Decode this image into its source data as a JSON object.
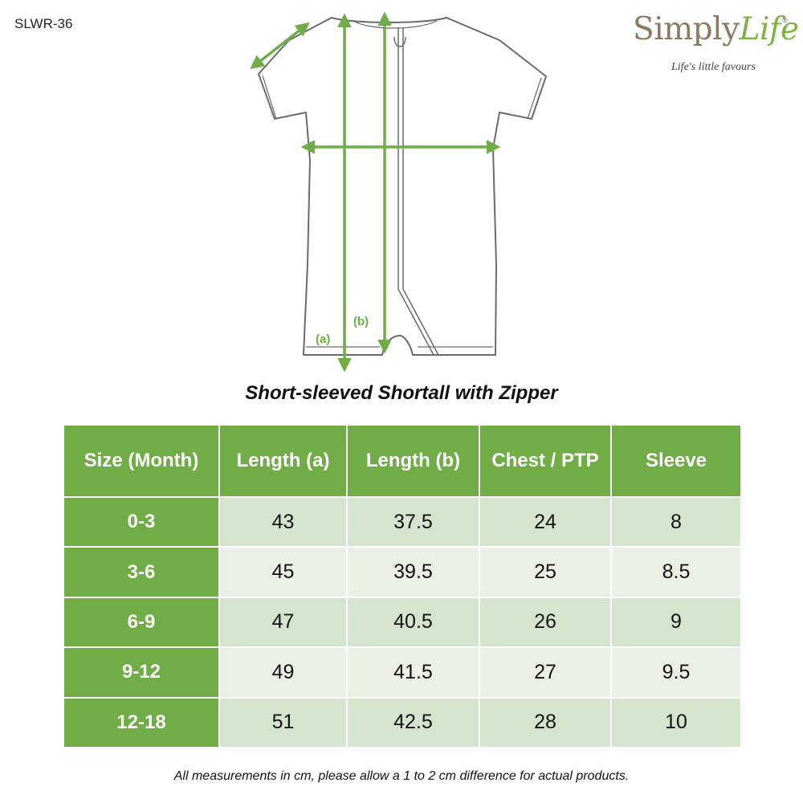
{
  "product_code": "SLWR-36",
  "brand": {
    "name_part1": "Simply",
    "name_part2": "Life",
    "registered_mark": "®",
    "tagline": "Life's little favours",
    "colors": {
      "text": "#8a7a62",
      "accent": "#7cb342"
    }
  },
  "diagram": {
    "label_a": "(a)",
    "label_b": "(b)",
    "arrow_color": "#70ad47"
  },
  "title": "Short-sleeved Shortall with Zipper",
  "table": {
    "headers": [
      "Size (Month)",
      "Length (a)",
      "Length (b)",
      "Chest / PTP",
      "Sleeve"
    ],
    "rows": [
      [
        "0-3",
        "43",
        "37.5",
        "24",
        "8"
      ],
      [
        "3-6",
        "45",
        "39.5",
        "25",
        "8.5"
      ],
      [
        "6-9",
        "47",
        "40.5",
        "26",
        "9"
      ],
      [
        "9-12",
        "49",
        "41.5",
        "27",
        "9.5"
      ],
      [
        "12-18",
        "51",
        "42.5",
        "28",
        "10"
      ]
    ],
    "colors": {
      "header": "#70ad47",
      "row_odd": "#d4e4cd",
      "row_even": "#eaf0e6"
    }
  },
  "footnote": "All measurements in cm, please allow a 1 to 2 cm difference for actual products."
}
